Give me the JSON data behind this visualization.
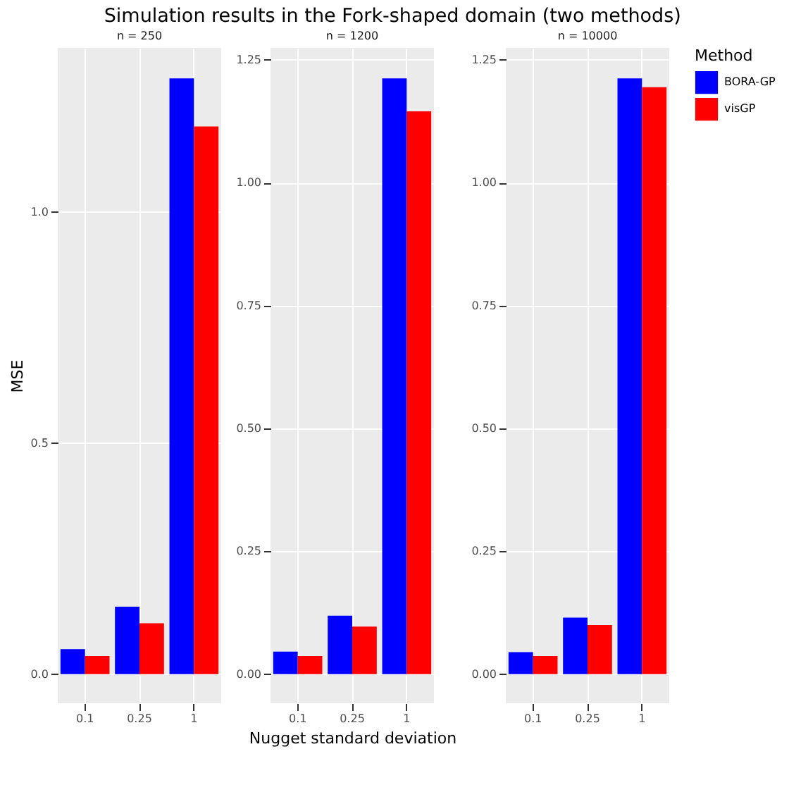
{
  "chart_data": [
    {
      "type": "bar",
      "title": "Simulation results in the Fork-shaped domain (two methods)",
      "subtitle": "n = 250",
      "ylabel": "MSE",
      "categories": [
        "0.1",
        "0.25",
        "1"
      ],
      "ylim": [
        -0.063,
        1.355
      ],
      "yticks": [
        {
          "value": 0,
          "label": "0.0"
        },
        0.5,
        {
          "value": 1,
          "label": "1.0"
        }
      ],
      "grid": true,
      "legend": "right",
      "legend_title": "Method",
      "series": [
        {
          "name": "BORA-GP",
          "color": "#0000ff",
          "values": [
            0.054,
            0.146,
            1.289
          ]
        },
        {
          "name": "visGP",
          "color": "#ff0000",
          "values": [
            0.039,
            0.11,
            1.185
          ]
        }
      ]
    },
    {
      "type": "bar",
      "subtitle": "n = 1200",
      "xlabel": "Nugget standard deviation",
      "categories": [
        "0.1",
        "0.25",
        "1"
      ],
      "ylim": [
        -0.059,
        1.274
      ],
      "yticks": [
        {
          "value": 0,
          "label": "0.00"
        },
        0.25,
        {
          "value": 0.5,
          "label": "0.50"
        },
        0.75,
        {
          "value": 1,
          "label": "1.00"
        },
        1.25
      ],
      "grid": true,
      "series": [
        {
          "name": "BORA-GP",
          "color": "#0000ff",
          "values": [
            0.046,
            0.119,
            1.212
          ]
        },
        {
          "name": "visGP",
          "color": "#ff0000",
          "values": [
            0.037,
            0.097,
            1.145
          ]
        }
      ]
    },
    {
      "type": "bar",
      "subtitle": "n = 10000",
      "categories": [
        "0.1",
        "0.25",
        "1"
      ],
      "ylim": [
        -0.059,
        1.274
      ],
      "yticks": [
        {
          "value": 0,
          "label": "0.00"
        },
        0.25,
        {
          "value": 0.5,
          "label": "0.50"
        },
        0.75,
        {
          "value": 1,
          "label": "1.00"
        },
        1.25
      ],
      "grid": true,
      "series": [
        {
          "name": "BORA-GP",
          "color": "#0000ff",
          "values": [
            0.045,
            0.115,
            1.212
          ]
        },
        {
          "name": "visGP",
          "color": "#ff0000",
          "values": [
            0.037,
            0.1,
            1.194
          ]
        }
      ]
    }
  ]
}
